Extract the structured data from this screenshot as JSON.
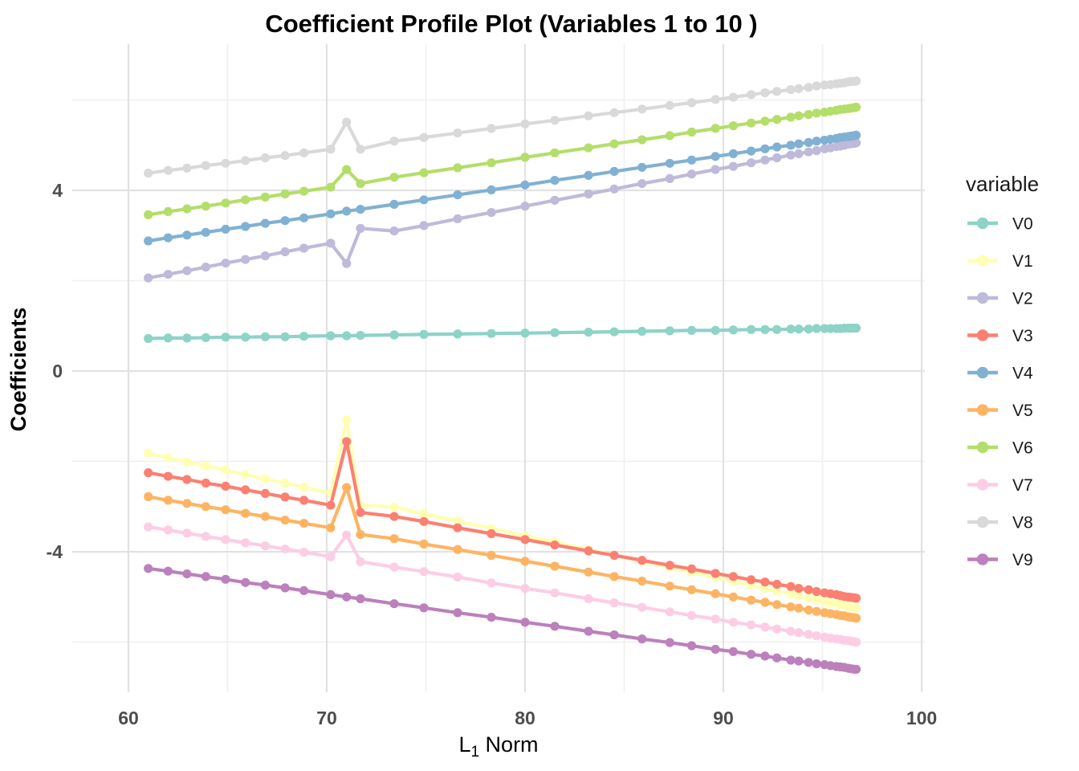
{
  "chart_data": {
    "type": "line",
    "title": "Coefficient Profile Plot (Variables 1 to 10 )",
    "ylabel": "Coefficients",
    "xlabel_parts": {
      "base": "L",
      "sub": "1",
      "rest": " Norm"
    },
    "legend_title": "variable",
    "legend_position": "right",
    "grid": true,
    "xlim": [
      57,
      100.2
    ],
    "ylim": [
      -7.1,
      7.2
    ],
    "x_major_ticks": [
      60,
      70,
      80,
      90,
      100
    ],
    "x_minor_ticks": [
      65,
      75,
      85,
      95
    ],
    "y_major_ticks": [
      -4,
      0,
      4
    ],
    "y_minor_ticks": [
      -6,
      -2,
      2,
      6
    ],
    "x_tick_labels": [
      "60",
      "70",
      "80",
      "90",
      "100"
    ],
    "y_tick_labels": [
      "-4",
      "0",
      "4"
    ],
    "x": [
      61,
      62,
      62.95,
      63.9,
      64.9,
      65.9,
      66.9,
      67.9,
      68.85,
      70.2,
      71,
      71.7,
      73.4,
      74.9,
      76.6,
      78.3,
      80,
      81.5,
      83.2,
      84.5,
      85.9,
      87.3,
      88.4,
      89.6,
      90.5,
      91.4,
      92.1,
      92.7,
      93.4,
      93.8,
      94.3,
      94.7,
      95.1,
      95.4,
      95.7,
      95.9,
      96.1,
      96.3,
      96.45,
      96.6,
      96.7
    ],
    "series": [
      {
        "name": "V0",
        "color": "#8DD3C7",
        "values": [
          0.72,
          0.73,
          0.73,
          0.74,
          0.75,
          0.75,
          0.76,
          0.76,
          0.77,
          0.78,
          0.78,
          0.79,
          0.8,
          0.81,
          0.82,
          0.83,
          0.84,
          0.85,
          0.86,
          0.87,
          0.88,
          0.89,
          0.9,
          0.9,
          0.91,
          0.92,
          0.92,
          0.92,
          0.93,
          0.93,
          0.93,
          0.94,
          0.94,
          0.94,
          0.94,
          0.94,
          0.95,
          0.95,
          0.95,
          0.95,
          0.95
        ]
      },
      {
        "name": "V1",
        "color": "#FFFFB3",
        "values": [
          -1.82,
          -1.92,
          -2.01,
          -2.1,
          -2.19,
          -2.29,
          -2.39,
          -2.48,
          -2.57,
          -2.7,
          -1.08,
          -2.97,
          -3.01,
          -3.16,
          -3.32,
          -3.48,
          -3.65,
          -3.79,
          -3.95,
          -4.08,
          -4.21,
          -4.35,
          -4.45,
          -4.57,
          -4.66,
          -4.74,
          -4.81,
          -4.87,
          -4.93,
          -4.97,
          -5.02,
          -5.06,
          -5.1,
          -5.13,
          -5.15,
          -5.17,
          -5.19,
          -5.21,
          -5.23,
          -5.24,
          -5.25
        ]
      },
      {
        "name": "V2",
        "color": "#BEBADA",
        "values": [
          2.06,
          2.14,
          2.22,
          2.3,
          2.39,
          2.47,
          2.55,
          2.64,
          2.72,
          2.83,
          2.38,
          3.16,
          3.1,
          3.22,
          3.37,
          3.51,
          3.65,
          3.78,
          3.92,
          4.03,
          4.15,
          4.26,
          4.36,
          4.46,
          4.53,
          4.61,
          4.67,
          4.72,
          4.78,
          4.81,
          4.85,
          4.88,
          4.92,
          4.94,
          4.97,
          4.98,
          5.0,
          5.02,
          5.03,
          5.04,
          5.05
        ]
      },
      {
        "name": "V3",
        "color": "#FB8072",
        "values": [
          -2.25,
          -2.33,
          -2.4,
          -2.48,
          -2.55,
          -2.63,
          -2.71,
          -2.79,
          -2.86,
          -2.97,
          -1.56,
          -3.13,
          -3.22,
          -3.33,
          -3.47,
          -3.6,
          -3.73,
          -3.85,
          -3.98,
          -4.08,
          -4.19,
          -4.3,
          -4.38,
          -4.48,
          -4.55,
          -4.62,
          -4.67,
          -4.72,
          -4.77,
          -4.81,
          -4.84,
          -4.88,
          -4.91,
          -4.93,
          -4.95,
          -4.97,
          -4.99,
          -5.0,
          -5.01,
          -5.02,
          -5.03
        ]
      },
      {
        "name": "V4",
        "color": "#80B1D3",
        "values": [
          2.88,
          2.95,
          3.01,
          3.07,
          3.14,
          3.2,
          3.27,
          3.33,
          3.39,
          3.48,
          3.54,
          3.58,
          3.69,
          3.79,
          3.9,
          4.01,
          4.12,
          4.22,
          4.33,
          4.42,
          4.51,
          4.6,
          4.67,
          4.75,
          4.81,
          4.87,
          4.92,
          4.96,
          5.0,
          5.03,
          5.06,
          5.09,
          5.11,
          5.13,
          5.15,
          5.17,
          5.18,
          5.19,
          5.2,
          5.21,
          5.22
        ]
      },
      {
        "name": "V5",
        "color": "#FDB462",
        "values": [
          -2.78,
          -2.86,
          -2.93,
          -3.0,
          -3.07,
          -3.15,
          -3.22,
          -3.3,
          -3.37,
          -3.47,
          -2.58,
          -3.62,
          -3.71,
          -3.83,
          -3.95,
          -4.08,
          -4.21,
          -4.32,
          -4.45,
          -4.55,
          -4.65,
          -4.76,
          -4.84,
          -4.93,
          -5.0,
          -5.07,
          -5.12,
          -5.17,
          -5.22,
          -5.25,
          -5.29,
          -5.32,
          -5.35,
          -5.37,
          -5.39,
          -5.41,
          -5.42,
          -5.44,
          -5.45,
          -5.46,
          -5.47
        ]
      },
      {
        "name": "V6",
        "color": "#B3DE69",
        "values": [
          3.46,
          3.53,
          3.59,
          3.65,
          3.72,
          3.79,
          3.85,
          3.92,
          3.98,
          4.07,
          4.46,
          4.15,
          4.29,
          4.39,
          4.5,
          4.61,
          4.73,
          4.83,
          4.94,
          5.03,
          5.12,
          5.21,
          5.29,
          5.37,
          5.43,
          5.49,
          5.53,
          5.57,
          5.62,
          5.65,
          5.68,
          5.71,
          5.73,
          5.75,
          5.77,
          5.79,
          5.8,
          5.81,
          5.82,
          5.83,
          5.84
        ]
      },
      {
        "name": "V7",
        "color": "#FCCDE5",
        "values": [
          -3.45,
          -3.52,
          -3.59,
          -3.66,
          -3.73,
          -3.8,
          -3.87,
          -3.94,
          -4.01,
          -4.11,
          -3.63,
          -4.22,
          -4.34,
          -4.44,
          -4.56,
          -4.69,
          -4.81,
          -4.91,
          -5.04,
          -5.13,
          -5.23,
          -5.33,
          -5.41,
          -5.49,
          -5.56,
          -5.62,
          -5.67,
          -5.71,
          -5.76,
          -5.79,
          -5.83,
          -5.86,
          -5.89,
          -5.91,
          -5.93,
          -5.94,
          -5.96,
          -5.97,
          -5.98,
          -5.99,
          -6.0
        ]
      },
      {
        "name": "V8",
        "color": "#D9D9D9",
        "values": [
          4.38,
          4.44,
          4.49,
          4.55,
          4.6,
          4.66,
          4.72,
          4.77,
          4.83,
          4.91,
          5.51,
          4.91,
          5.09,
          5.17,
          5.27,
          5.37,
          5.47,
          5.55,
          5.65,
          5.72,
          5.8,
          5.88,
          5.94,
          6.01,
          6.06,
          6.12,
          6.16,
          6.19,
          6.23,
          6.25,
          6.28,
          6.31,
          6.33,
          6.34,
          6.36,
          6.37,
          6.38,
          6.4,
          6.41,
          6.41,
          6.42
        ]
      },
      {
        "name": "V9",
        "color": "#BC80BD",
        "values": [
          -4.37,
          -4.43,
          -4.49,
          -4.55,
          -4.61,
          -4.68,
          -4.74,
          -4.8,
          -4.86,
          -4.95,
          -5.0,
          -5.04,
          -5.15,
          -5.24,
          -5.35,
          -5.45,
          -5.56,
          -5.65,
          -5.76,
          -5.84,
          -5.93,
          -6.01,
          -6.08,
          -6.16,
          -6.21,
          -6.27,
          -6.31,
          -6.35,
          -6.4,
          -6.42,
          -6.45,
          -6.48,
          -6.5,
          -6.52,
          -6.54,
          -6.55,
          -6.56,
          -6.58,
          -6.59,
          -6.6,
          -6.6
        ]
      }
    ]
  },
  "colors": {
    "background": "#ffffff",
    "grid_major": "#e2e2e2",
    "grid_minor": "#f0f0f0",
    "tick_label": "#4d4d4d",
    "text": "#1a1a1a"
  }
}
